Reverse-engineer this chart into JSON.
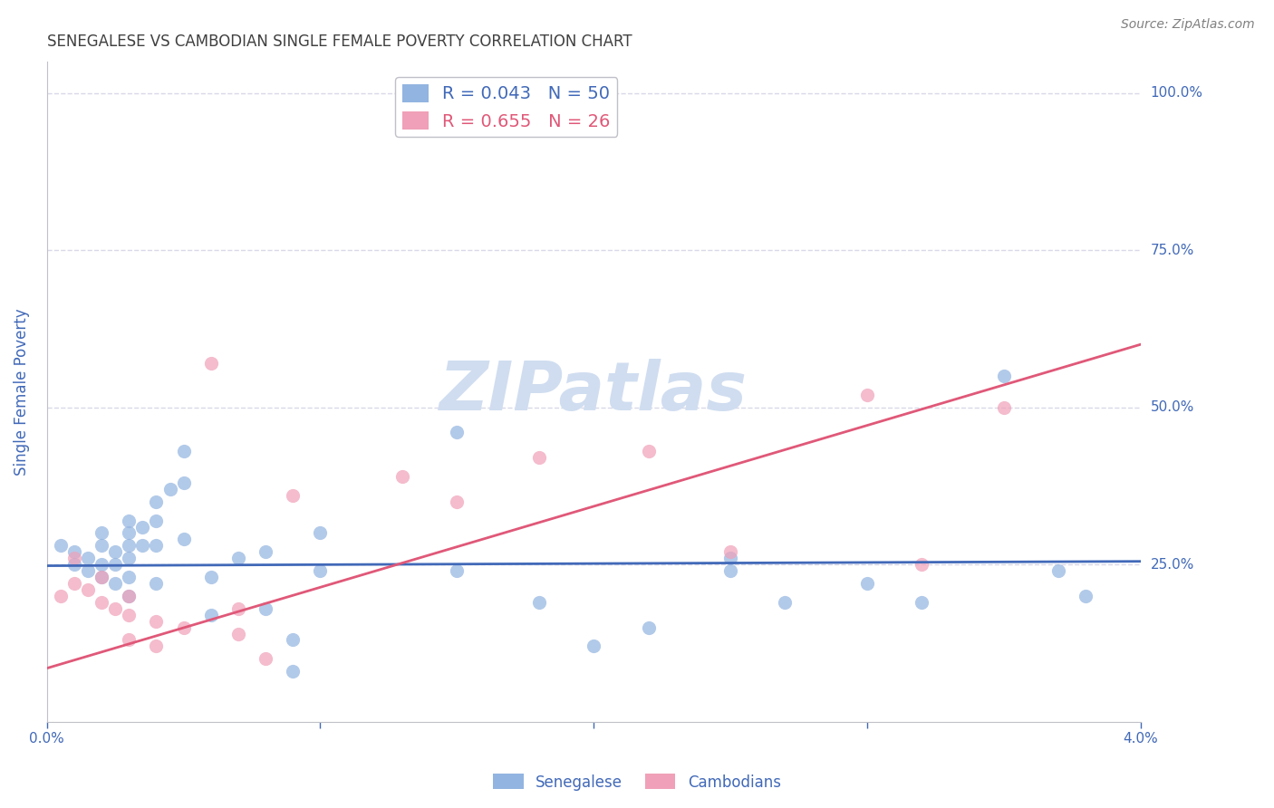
{
  "title": "SENEGALESE VS CAMBODIAN SINGLE FEMALE POVERTY CORRELATION CHART",
  "source": "Source: ZipAtlas.com",
  "ylabel": "Single Female Poverty",
  "xlim": [
    0.0,
    0.04
  ],
  "ylim": [
    0.0,
    1.05
  ],
  "ytick_vals": [
    0.25,
    0.5,
    0.75,
    1.0
  ],
  "ytick_labels": [
    "25.0%",
    "50.0%",
    "75.0%",
    "100.0%"
  ],
  "xticks": [
    0.0,
    0.01,
    0.02,
    0.03,
    0.04
  ],
  "xtick_labels": [
    "0.0%",
    "",
    "",
    "",
    "4.0%"
  ],
  "legend_blue_label": "Senegalese",
  "legend_pink_label": "Cambodians",
  "R_blue": 0.043,
  "N_blue": 50,
  "R_pink": 0.655,
  "N_pink": 26,
  "blue_color": "#92b4e0",
  "pink_color": "#f0a0b8",
  "blue_line_color": "#4169b8",
  "pink_line_color": "#e05878",
  "title_color": "#404040",
  "axis_label_color": "#4169b8",
  "tick_label_color": "#4169b8",
  "source_color": "#808080",
  "watermark_color": "#d0ddf0",
  "background_color": "#ffffff",
  "grid_color": "#d8d8e8",
  "blue_x": [
    0.0005,
    0.001,
    0.001,
    0.0015,
    0.0015,
    0.002,
    0.002,
    0.002,
    0.002,
    0.0025,
    0.0025,
    0.0025,
    0.003,
    0.003,
    0.003,
    0.003,
    0.003,
    0.003,
    0.0035,
    0.0035,
    0.004,
    0.004,
    0.004,
    0.004,
    0.0045,
    0.005,
    0.005,
    0.005,
    0.006,
    0.006,
    0.007,
    0.008,
    0.008,
    0.009,
    0.009,
    0.01,
    0.01,
    0.015,
    0.015,
    0.018,
    0.02,
    0.022,
    0.025,
    0.025,
    0.027,
    0.03,
    0.032,
    0.035,
    0.037,
    0.038
  ],
  "blue_y": [
    0.28,
    0.25,
    0.27,
    0.26,
    0.24,
    0.3,
    0.28,
    0.25,
    0.23,
    0.27,
    0.25,
    0.22,
    0.32,
    0.3,
    0.28,
    0.26,
    0.23,
    0.2,
    0.31,
    0.28,
    0.35,
    0.32,
    0.28,
    0.22,
    0.37,
    0.43,
    0.38,
    0.29,
    0.23,
    0.17,
    0.26,
    0.27,
    0.18,
    0.13,
    0.08,
    0.24,
    0.3,
    0.46,
    0.24,
    0.19,
    0.12,
    0.15,
    0.26,
    0.24,
    0.19,
    0.22,
    0.19,
    0.55,
    0.24,
    0.2
  ],
  "pink_x": [
    0.0005,
    0.001,
    0.001,
    0.0015,
    0.002,
    0.002,
    0.0025,
    0.003,
    0.003,
    0.003,
    0.004,
    0.004,
    0.005,
    0.006,
    0.007,
    0.007,
    0.008,
    0.009,
    0.013,
    0.015,
    0.018,
    0.022,
    0.025,
    0.03,
    0.032,
    0.035
  ],
  "pink_y": [
    0.2,
    0.22,
    0.26,
    0.21,
    0.19,
    0.23,
    0.18,
    0.2,
    0.17,
    0.13,
    0.16,
    0.12,
    0.15,
    0.57,
    0.18,
    0.14,
    0.1,
    0.36,
    0.39,
    0.35,
    0.42,
    0.43,
    0.27,
    0.52,
    0.25,
    0.5
  ],
  "blue_trendline_x": [
    0.0,
    0.04
  ],
  "blue_trendline_y": [
    0.248,
    0.255
  ],
  "pink_trendline_x": [
    0.0,
    0.04
  ],
  "pink_trendline_y": [
    0.085,
    0.6
  ],
  "marker_size": 120,
  "marker_alpha": 0.7
}
